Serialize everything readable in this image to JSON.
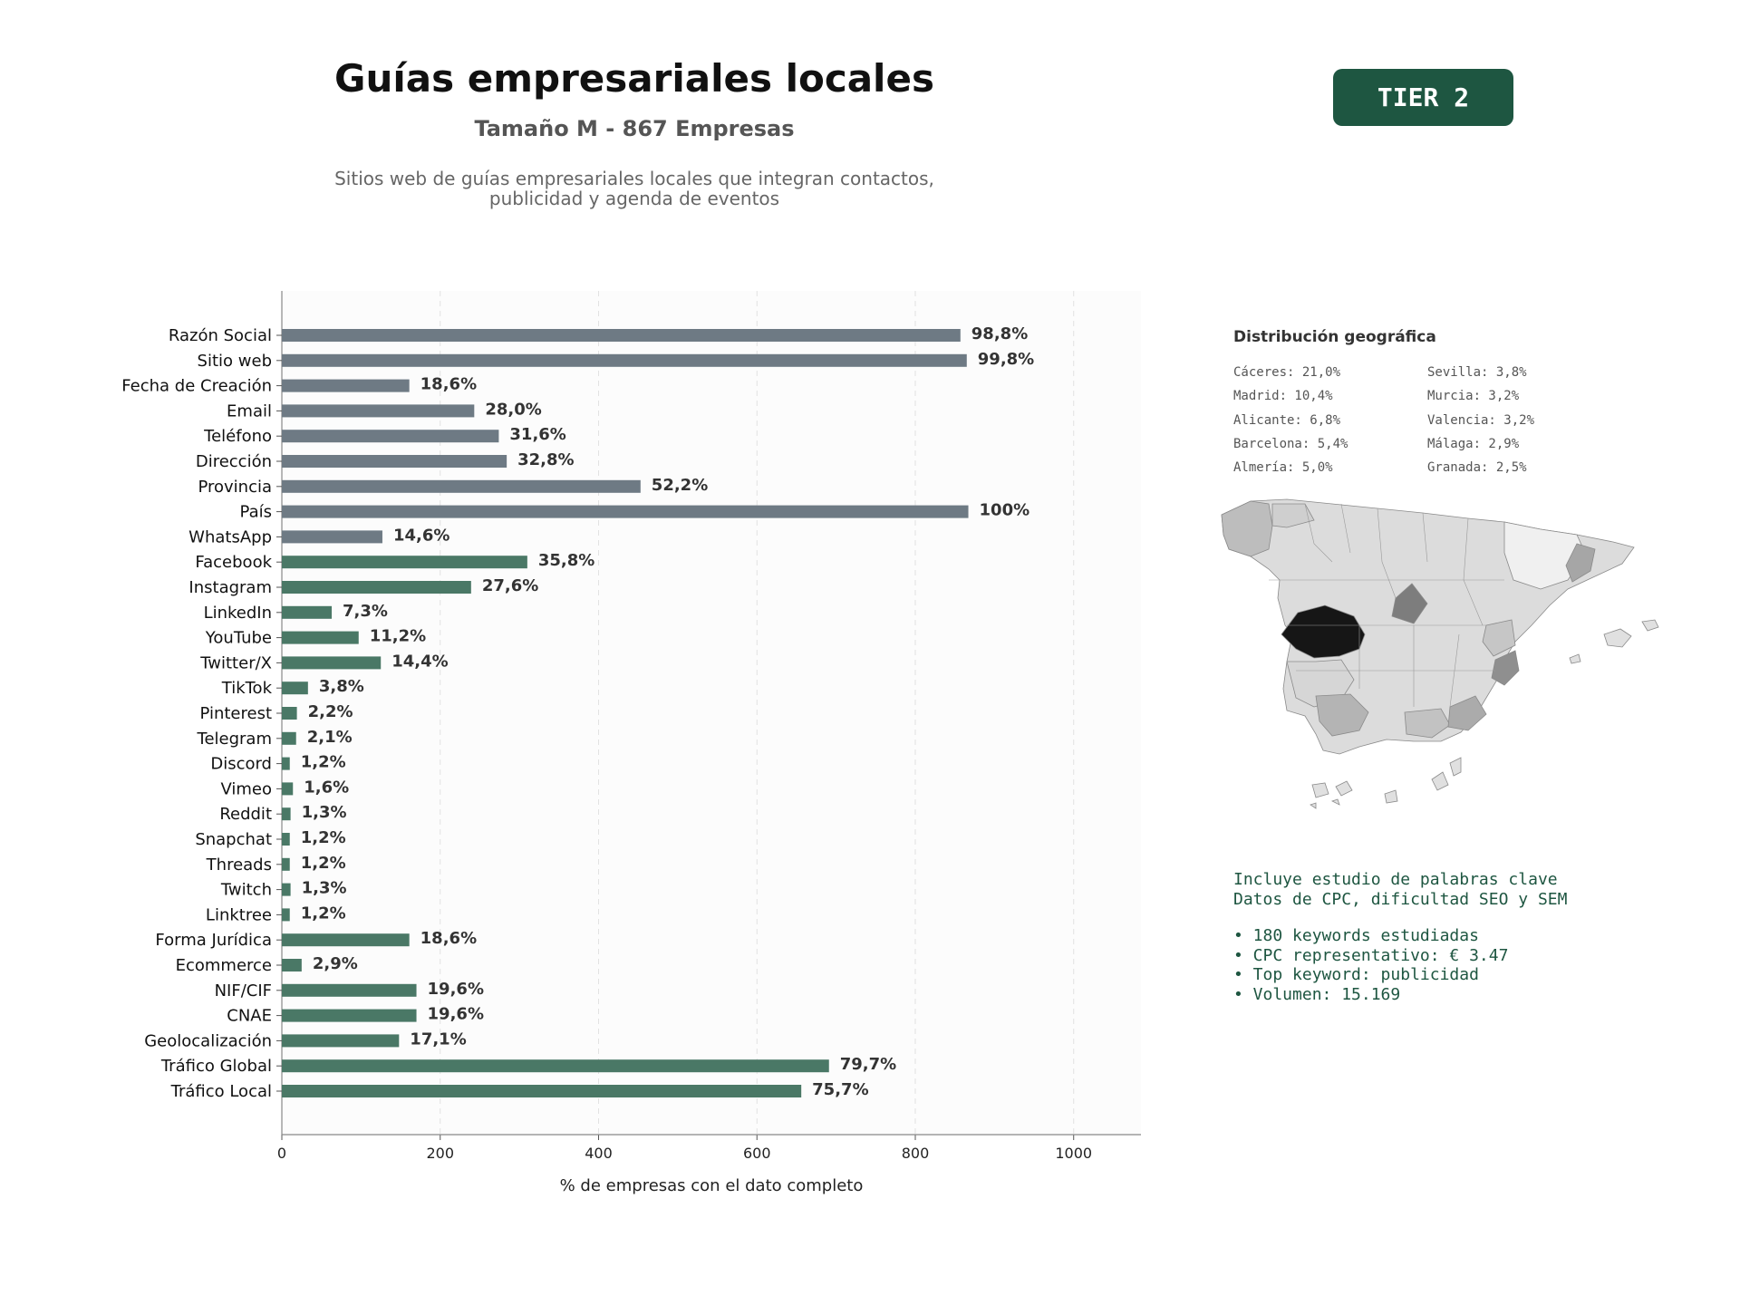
{
  "header": {
    "title": "Guías empresariales locales",
    "subtitle": "Tamaño M - 867 Empresas",
    "description_line1": "Sitios web de guías empresariales locales que integran contactos,",
    "description_line2": "publicidad y agenda de eventos",
    "tier": "TIER 2"
  },
  "chart_data": {
    "type": "bar",
    "orientation": "horizontal",
    "xlabel": "% de empresas con el dato completo",
    "xlim": [
      0,
      1085
    ],
    "xticks": [
      0,
      200,
      400,
      600,
      800,
      1000
    ],
    "grid": "vertical dashed",
    "colors": {
      "contact": "#6e7a84",
      "social": "#4a7866",
      "text": "#333333"
    },
    "categories": [
      "Razón Social",
      "Sitio web",
      "Fecha de Creación",
      "Email",
      "Teléfono",
      "Dirección",
      "Provincia",
      "País",
      "WhatsApp",
      "Facebook",
      "Instagram",
      "LinkedIn",
      "YouTube",
      "Twitter/X",
      "TikTok",
      "Pinterest",
      "Telegram",
      "Discord",
      "Vimeo",
      "Reddit",
      "Snapchat",
      "Threads",
      "Twitch",
      "Linktree",
      "Forma Jurídica",
      "Ecommerce",
      "NIF/CIF",
      "CNAE",
      "Geolocalización",
      "Tráfico Global",
      "Tráfico Local"
    ],
    "values": [
      857,
      865,
      161,
      243,
      274,
      284,
      453,
      867,
      127,
      310,
      239,
      63,
      97,
      125,
      33,
      19,
      18,
      10,
      14,
      11,
      10,
      10,
      11,
      10,
      161,
      25,
      170,
      170,
      148,
      691,
      656
    ],
    "labels": [
      "98,8%",
      "99,8%",
      "18,6%",
      "28,0%",
      "31,6%",
      "32,8%",
      "52,2%",
      "100%",
      "14,6%",
      "35,8%",
      "27,6%",
      "7,3%",
      "11,2%",
      "14,4%",
      "3,8%",
      "2,2%",
      "2,1%",
      "1,2%",
      "1,6%",
      "1,3%",
      "1,2%",
      "1,2%",
      "1,3%",
      "1,2%",
      "18,6%",
      "2,9%",
      "19,6%",
      "19,6%",
      "17,1%",
      "79,7%",
      "75,7%"
    ],
    "groups": [
      "contact",
      "contact",
      "contact",
      "contact",
      "contact",
      "contact",
      "contact",
      "contact",
      "contact",
      "social",
      "social",
      "social",
      "social",
      "social",
      "social",
      "social",
      "social",
      "social",
      "social",
      "social",
      "social",
      "social",
      "social",
      "social",
      "social",
      "social",
      "social",
      "social",
      "social",
      "social",
      "social"
    ]
  },
  "geo": {
    "title": "Distribución geográfica",
    "col1": [
      "Cáceres: 21,0%",
      "Madrid: 10,4%",
      "Alicante: 6,8%",
      "Barcelona: 5,4%",
      "Almería: 5,0%"
    ],
    "col2": [
      "Sevilla: 3,8%",
      "Murcia: 3,2%",
      "Valencia: 3,2%",
      "Málaga: 2,9%",
      "Granada: 2,5%"
    ]
  },
  "keywords": {
    "line1": "Incluye estudio de palabras clave",
    "line2": "Datos de CPC, dificultad SEO y SEM",
    "bullet1": "• 180 keywords estudiadas",
    "bullet2": "• CPC representativo: € 3.47",
    "bullet3": "• Top keyword: publicidad",
    "bullet4": "• Volumen: 15.169"
  }
}
